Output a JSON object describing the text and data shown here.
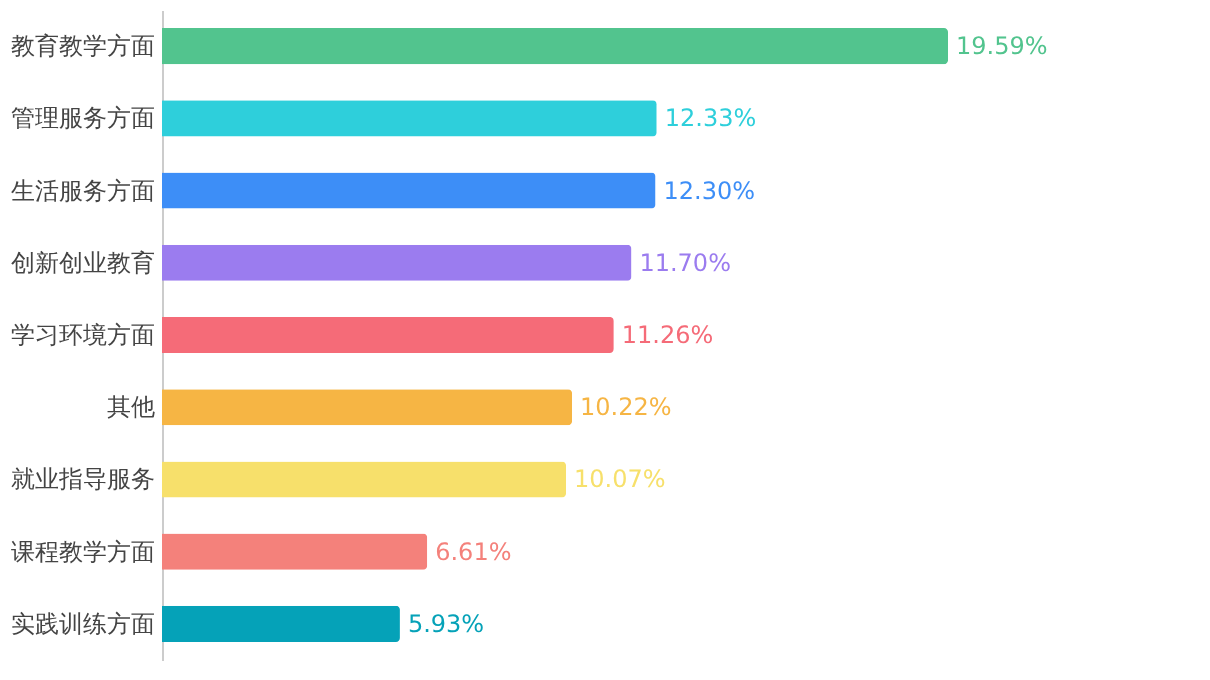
{
  "chart_data": {
    "type": "bar",
    "orientation": "horizontal",
    "categories": [
      "教育教学方面",
      "管理服务方面",
      "生活服务方面",
      "创新创业教育",
      "学习环境方面",
      "其他",
      "就业指导服务",
      "课程教学方面",
      "实践训练方面"
    ],
    "values": [
      19.59,
      12.33,
      12.3,
      11.7,
      11.26,
      10.22,
      10.07,
      6.61,
      5.93
    ],
    "value_labels": [
      "19.59%",
      "12.33%",
      "12.30%",
      "11.70%",
      "11.26%",
      "10.22%",
      "10.07%",
      "6.61%",
      "5.93%"
    ],
    "colors": [
      "#52c48e",
      "#2ecfdb",
      "#3d8ef7",
      "#9b7cef",
      "#f56b78",
      "#f6b544",
      "#f7e06b",
      "#f4817b",
      "#05a2b8"
    ],
    "tick_labels": "y",
    "grid": false
  }
}
